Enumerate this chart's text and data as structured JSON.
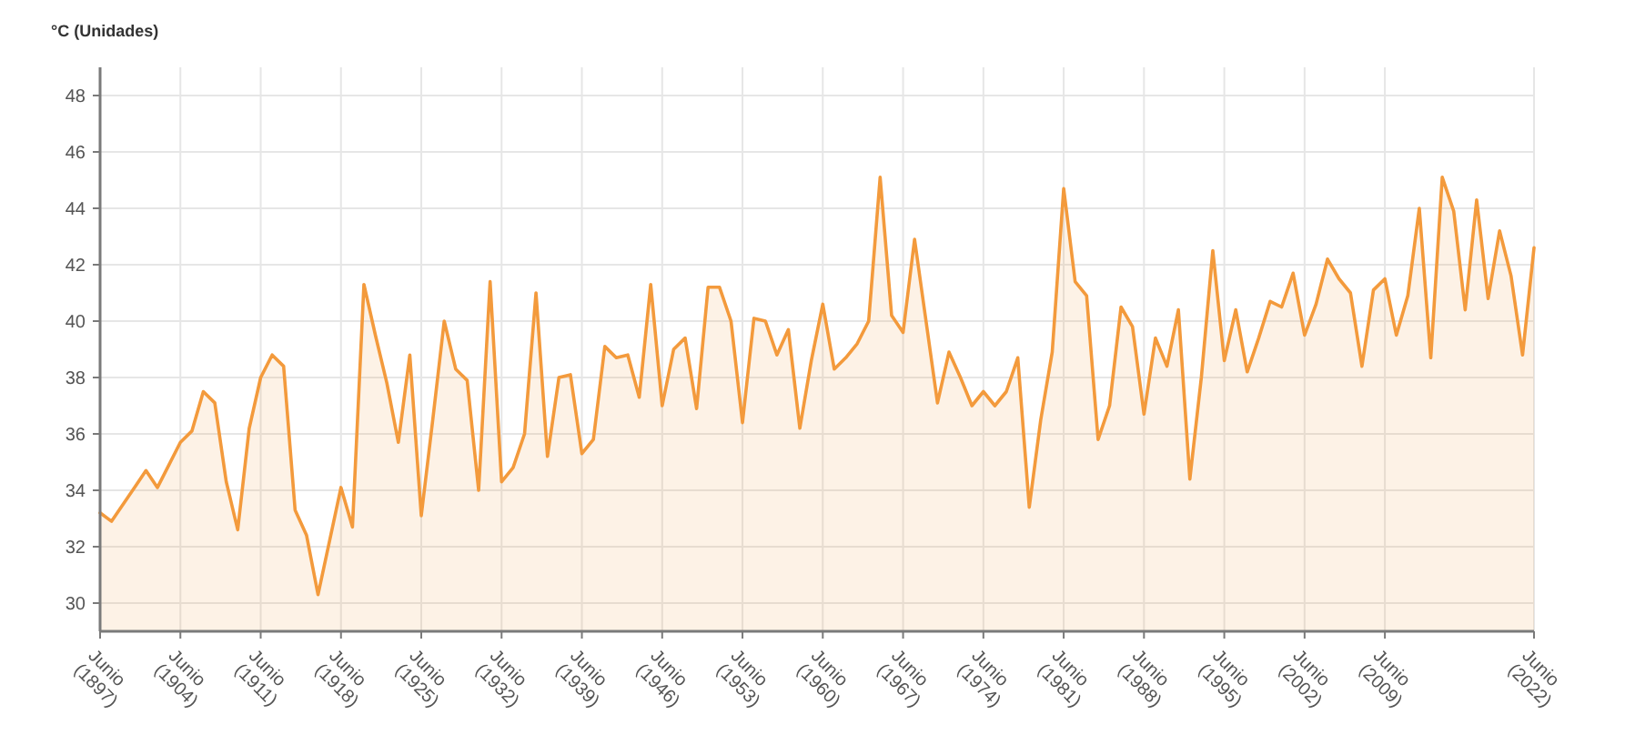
{
  "chart_data": {
    "type": "area",
    "ylabel": "°C (Unidades)",
    "categories": [
      "Junio (1897)",
      null,
      null,
      null,
      null,
      null,
      null,
      "Junio (1904)",
      null,
      null,
      null,
      null,
      null,
      null,
      "Junio (1911)",
      null,
      null,
      null,
      null,
      null,
      null,
      "Junio (1918)",
      null,
      null,
      null,
      null,
      null,
      null,
      "Junio (1925)",
      null,
      null,
      null,
      null,
      null,
      null,
      "Junio (1932)",
      null,
      null,
      null,
      null,
      null,
      null,
      "Junio (1939)",
      null,
      null,
      null,
      null,
      null,
      null,
      "Junio (1946)",
      null,
      null,
      null,
      null,
      null,
      null,
      "Junio (1953)",
      null,
      null,
      null,
      null,
      null,
      null,
      "Junio (1960)",
      null,
      null,
      null,
      null,
      null,
      null,
      "Junio (1967)",
      null,
      null,
      null,
      null,
      null,
      null,
      "Junio (1974)",
      null,
      null,
      null,
      null,
      null,
      null,
      "Junio (1981)",
      null,
      null,
      null,
      null,
      null,
      null,
      "Junio (1988)",
      null,
      null,
      null,
      null,
      null,
      null,
      "Junio (1995)",
      null,
      null,
      null,
      null,
      null,
      null,
      "Junio (2002)",
      null,
      null,
      null,
      null,
      null,
      null,
      "Junio (2009)",
      null,
      null,
      null,
      null,
      null,
      null,
      null,
      null,
      null,
      null,
      null,
      null,
      "Junio (2022)"
    ],
    "ylim": [
      29,
      49
    ],
    "yticks": [
      30,
      32,
      34,
      36,
      38,
      40,
      42,
      44,
      46,
      48
    ],
    "grid": true,
    "series": [
      {
        "color": "#f39a3c",
        "values": [
          33.2,
          32.9,
          33.5,
          34.1,
          34.7,
          34.1,
          34.9,
          35.7,
          36.1,
          37.5,
          37.1,
          34.3,
          32.6,
          36.2,
          38.0,
          38.8,
          38.4,
          33.3,
          32.4,
          30.3,
          32.2,
          34.1,
          32.7,
          41.3,
          39.5,
          37.8,
          35.7,
          38.8,
          33.1,
          36.5,
          40.0,
          38.3,
          37.9,
          34.0,
          41.4,
          34.3,
          34.8,
          36.0,
          41.0,
          35.2,
          38.0,
          38.1,
          35.3,
          35.8,
          39.1,
          38.7,
          38.8,
          37.3,
          41.3,
          37.0,
          39.0,
          39.4,
          36.9,
          41.2,
          41.2,
          40.0,
          36.4,
          40.1,
          40.0,
          38.8,
          39.7,
          36.2,
          38.6,
          40.6,
          38.3,
          38.7,
          39.2,
          40.0,
          45.1,
          40.2,
          39.6,
          42.9,
          40.0,
          37.1,
          38.9,
          38.0,
          37.0,
          37.5,
          37.0,
          37.5,
          38.7,
          33.4,
          36.5,
          38.9,
          44.7,
          41.4,
          40.9,
          35.8,
          37.0,
          40.5,
          39.8,
          36.7,
          39.4,
          38.4,
          40.4,
          34.4,
          38.0,
          42.5,
          38.6,
          40.4,
          38.2,
          39.4,
          40.7,
          40.5,
          41.7,
          39.5,
          40.6,
          42.2,
          41.5,
          41.0,
          38.4,
          41.1,
          41.5,
          39.5,
          40.9,
          44.0,
          38.7,
          45.1,
          43.9,
          40.4,
          44.3,
          40.8,
          43.2,
          41.6,
          38.8,
          42.6
        ]
      }
    ]
  }
}
